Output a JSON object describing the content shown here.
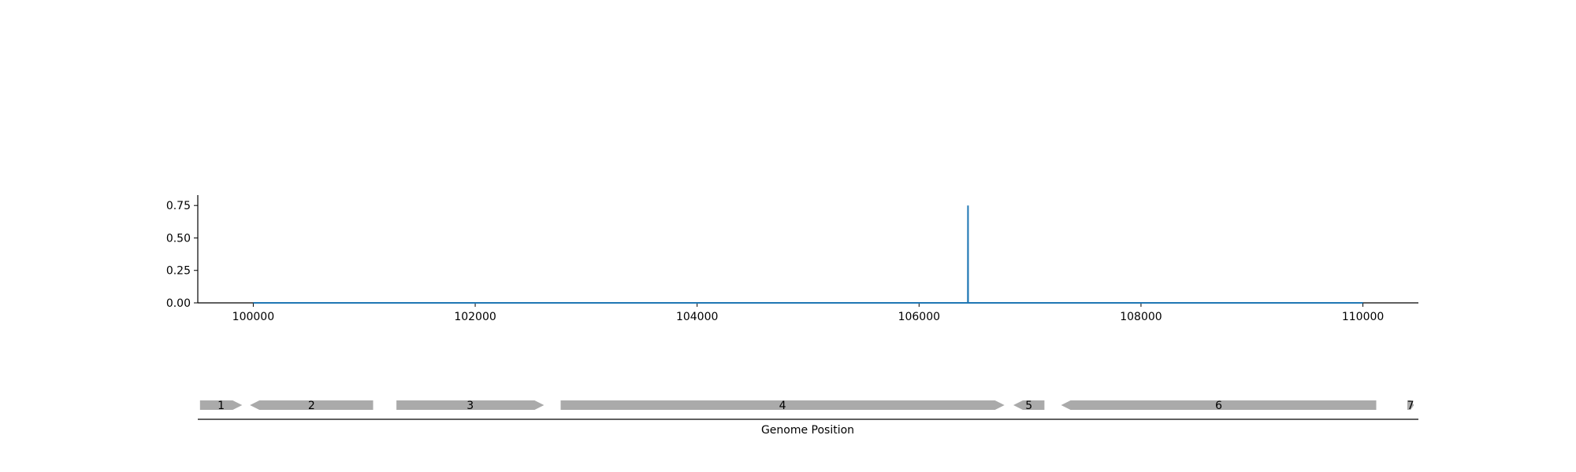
{
  "chart_data": {
    "type": "line",
    "title": "",
    "xlabel": "Genome Position",
    "ylabel": "",
    "xlim": [
      99500,
      110500
    ],
    "ylim": [
      0,
      0.83
    ],
    "x_ticks": [
      100000,
      102000,
      104000,
      106000,
      108000,
      110000
    ],
    "x_tick_labels": [
      "100000",
      "102000",
      "104000",
      "106000",
      "108000",
      "110000"
    ],
    "y_ticks": [
      0.0,
      0.25,
      0.5,
      0.75
    ],
    "y_tick_labels": [
      "0.00",
      "0.25",
      "0.50",
      "0.75"
    ],
    "series": [
      {
        "color": "#1f77b4",
        "x": [
          100000,
          106440,
          106441,
          106442,
          110000
        ],
        "y": [
          0,
          0,
          0.75,
          0,
          0
        ]
      }
    ],
    "grid": false,
    "genes": [
      {
        "label": "1",
        "start": 99520,
        "end": 99900,
        "strand": "+"
      },
      {
        "label": "2",
        "start": 99970,
        "end": 101080,
        "strand": "-"
      },
      {
        "label": "3",
        "start": 101290,
        "end": 102620,
        "strand": "+"
      },
      {
        "label": "4",
        "start": 102770,
        "end": 106770,
        "strand": "+"
      },
      {
        "label": "5",
        "start": 106850,
        "end": 107130,
        "strand": "-"
      },
      {
        "label": "6",
        "start": 107280,
        "end": 110120,
        "strand": "-"
      },
      {
        "label": "7",
        "start": 110400,
        "end": 110460,
        "strand": "+"
      }
    ],
    "gene_color": "#aaaaaa"
  }
}
